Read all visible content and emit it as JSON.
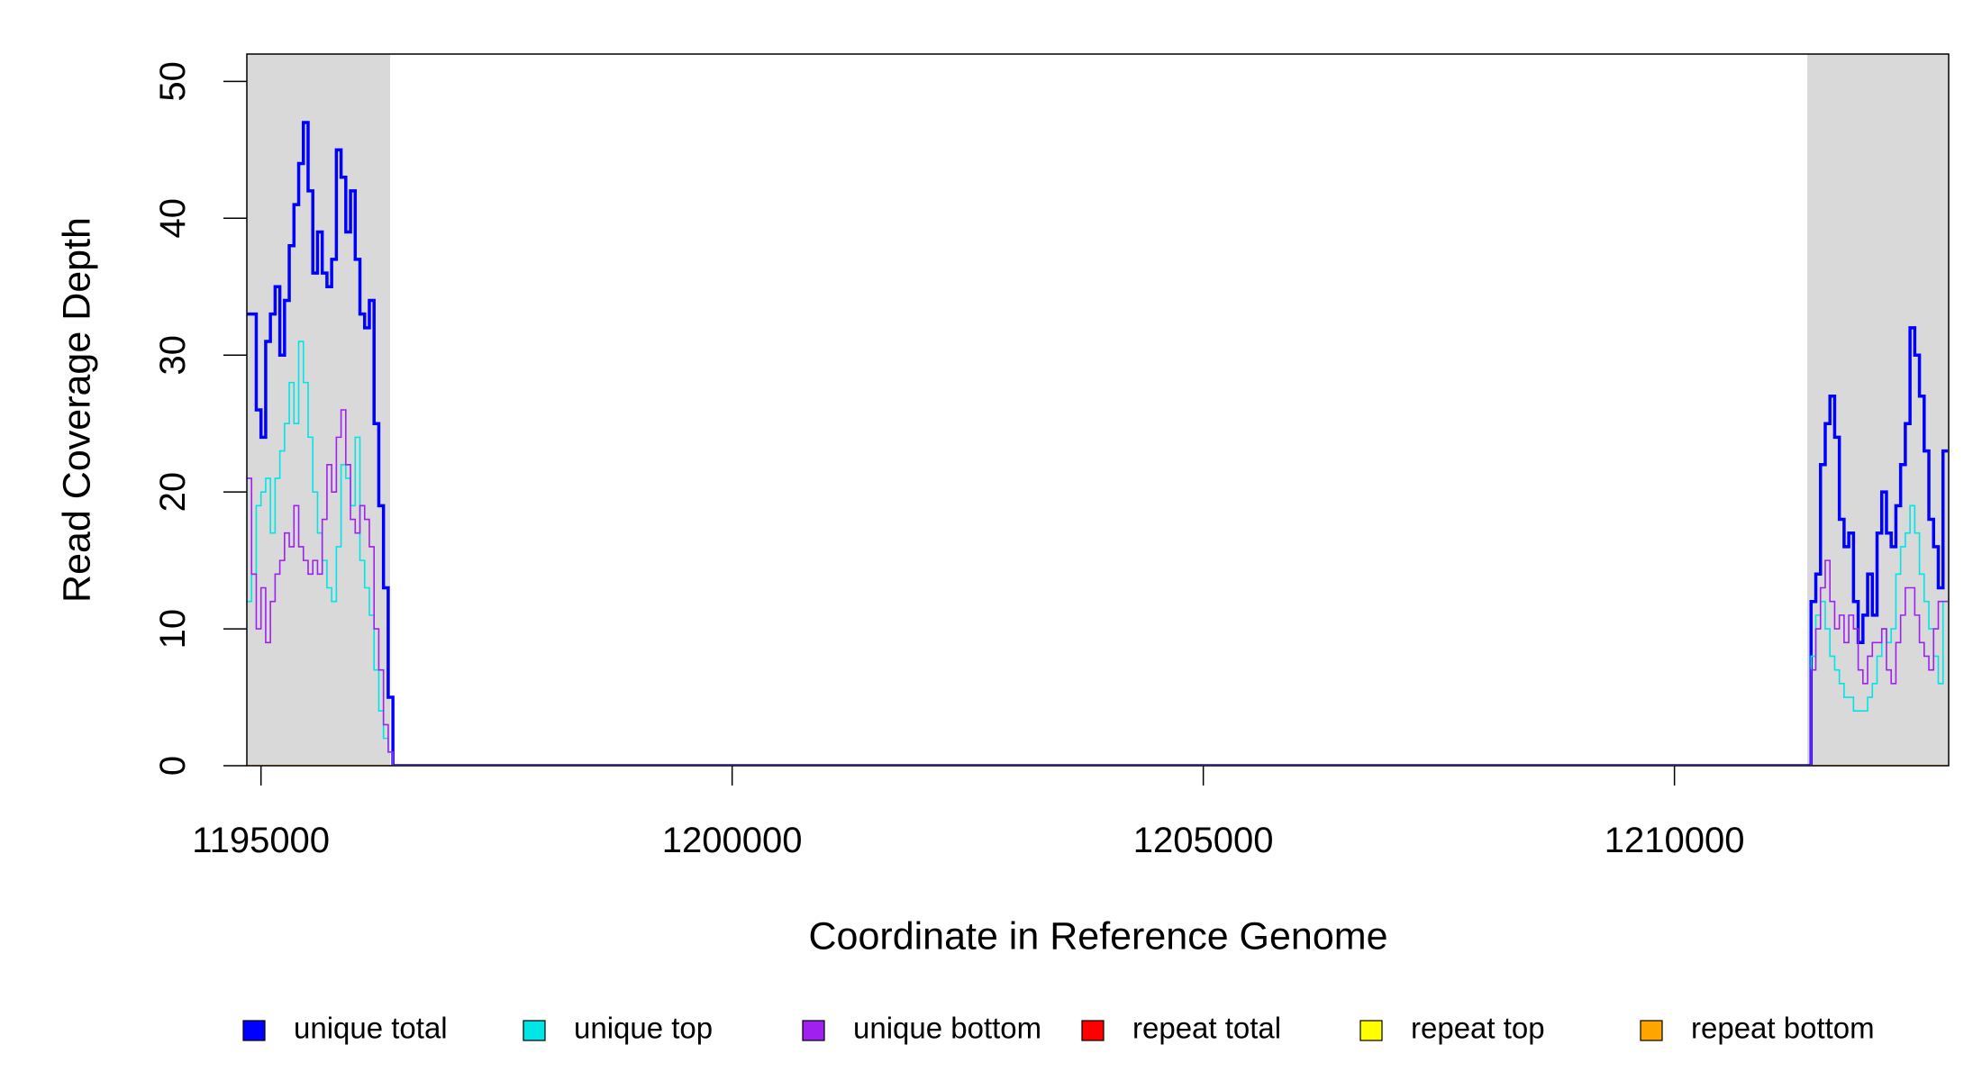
{
  "chart_data": {
    "type": "line",
    "step": true,
    "x_label": "Coordinate in Reference Genome",
    "y_label": "Read Coverage Depth",
    "xlim": [
      1194850,
      1212910
    ],
    "ylim": [
      0,
      52
    ],
    "xticks": [
      1195000,
      1200000,
      1205000,
      1210000
    ],
    "yticks": [
      0,
      10,
      20,
      30,
      40,
      50
    ],
    "shaded_regions": [
      [
        1194850,
        1196370
      ],
      [
        1211410,
        1212910
      ]
    ],
    "shade_color": "#d9d9d9",
    "x": [
      1194850,
      1194900,
      1194950,
      1195000,
      1195050,
      1195100,
      1195150,
      1195200,
      1195250,
      1195300,
      1195350,
      1195400,
      1195450,
      1195500,
      1195550,
      1195600,
      1195650,
      1195700,
      1195750,
      1195800,
      1195850,
      1195900,
      1195950,
      1196000,
      1196050,
      1196100,
      1196150,
      1196200,
      1196250,
      1196300,
      1196350,
      1196400,
      1211400,
      1211450,
      1211500,
      1211550,
      1211600,
      1211650,
      1211700,
      1211750,
      1211800,
      1211850,
      1211900,
      1211950,
      1212000,
      1212050,
      1212100,
      1212150,
      1212200,
      1212250,
      1212300,
      1212350,
      1212400,
      1212450,
      1212500,
      1212550,
      1212600,
      1212650,
      1212700,
      1212750,
      1212800,
      1212850,
      1212900
    ],
    "series": [
      {
        "name": "unique total",
        "color": "#0000ff",
        "width": 3.5,
        "values": [
          33,
          33,
          26,
          24,
          31,
          33,
          35,
          30,
          34,
          38,
          41,
          44,
          47,
          42,
          36,
          39,
          36,
          35,
          37,
          45,
          43,
          39,
          42,
          37,
          33,
          32,
          34,
          25,
          19,
          13,
          5,
          0,
          0,
          12,
          14,
          22,
          25,
          27,
          24,
          18,
          16,
          17,
          12,
          9,
          11,
          14,
          11,
          17,
          20,
          17,
          16,
          19,
          22,
          25,
          32,
          30,
          27,
          23,
          18,
          16,
          13,
          23,
          23
        ]
      },
      {
        "name": "unique top",
        "color": "#00e5e5",
        "width": 1.6,
        "values": [
          12,
          14,
          19,
          20,
          21,
          17,
          21,
          23,
          25,
          28,
          25,
          31,
          28,
          24,
          20,
          17,
          15,
          13,
          12,
          16,
          22,
          21,
          19,
          24,
          15,
          13,
          11,
          7,
          4,
          2,
          1,
          0,
          0,
          8,
          11,
          12,
          10,
          8,
          7,
          6,
          5,
          5,
          4,
          4,
          4,
          5,
          6,
          8,
          10,
          9,
          10,
          14,
          16,
          17,
          19,
          17,
          14,
          12,
          10,
          8,
          6,
          12,
          12
        ]
      },
      {
        "name": "unique bottom",
        "color": "#a020f0",
        "width": 1.6,
        "values": [
          21,
          14,
          10,
          13,
          9,
          12,
          14,
          15,
          17,
          16,
          19,
          16,
          15,
          14,
          15,
          14,
          18,
          22,
          20,
          24,
          26,
          22,
          18,
          17,
          19,
          18,
          16,
          10,
          7,
          3,
          1,
          0,
          0,
          7,
          10,
          13,
          15,
          12,
          10,
          11,
          9,
          11,
          10,
          7,
          6,
          8,
          9,
          9,
          10,
          7,
          6,
          9,
          11,
          13,
          13,
          11,
          9,
          8,
          7,
          10,
          12,
          12,
          12
        ]
      },
      {
        "name": "repeat total",
        "color": "#ff0000",
        "width": 1.6,
        "values": [
          0,
          0,
          0,
          0,
          0,
          0,
          0,
          0,
          0,
          0,
          0,
          0,
          0,
          0,
          0,
          0,
          0,
          0,
          0,
          0,
          0,
          0,
          0,
          0,
          0,
          0,
          0,
          0,
          0,
          0,
          0,
          0,
          0,
          0,
          0,
          0,
          0,
          0,
          0,
          0,
          0,
          0,
          0,
          0,
          0,
          0,
          0,
          0,
          0,
          0,
          0,
          0,
          0,
          0,
          0,
          0,
          0,
          0,
          0,
          0,
          0,
          0,
          0
        ]
      },
      {
        "name": "repeat top",
        "color": "#ffff00",
        "width": 1.6,
        "values": [
          0,
          0,
          0,
          0,
          0,
          0,
          0,
          0,
          0,
          0,
          0,
          0,
          0,
          0,
          0,
          0,
          0,
          0,
          0,
          0,
          0,
          0,
          0,
          0,
          0,
          0,
          0,
          0,
          0,
          0,
          0,
          0,
          0,
          0,
          0,
          0,
          0,
          0,
          0,
          0,
          0,
          0,
          0,
          0,
          0,
          0,
          0,
          0,
          0,
          0,
          0,
          0,
          0,
          0,
          0,
          0,
          0,
          0,
          0,
          0,
          0,
          0,
          0
        ]
      },
      {
        "name": "repeat bottom",
        "color": "#ffa500",
        "width": 1.6,
        "values": [
          0,
          0,
          0,
          0,
          0,
          0,
          0,
          0,
          0,
          0,
          0,
          0,
          0,
          0,
          0,
          0,
          0,
          0,
          0,
          0,
          0,
          0,
          0,
          0,
          0,
          0,
          0,
          0,
          0,
          0,
          0,
          0,
          0,
          0,
          0,
          0,
          0,
          0,
          0,
          0,
          0,
          0,
          0,
          0,
          0,
          0,
          0,
          0,
          0,
          0,
          0,
          0,
          0,
          0,
          0,
          0,
          0,
          0,
          0,
          0,
          0,
          0,
          0
        ]
      }
    ]
  }
}
